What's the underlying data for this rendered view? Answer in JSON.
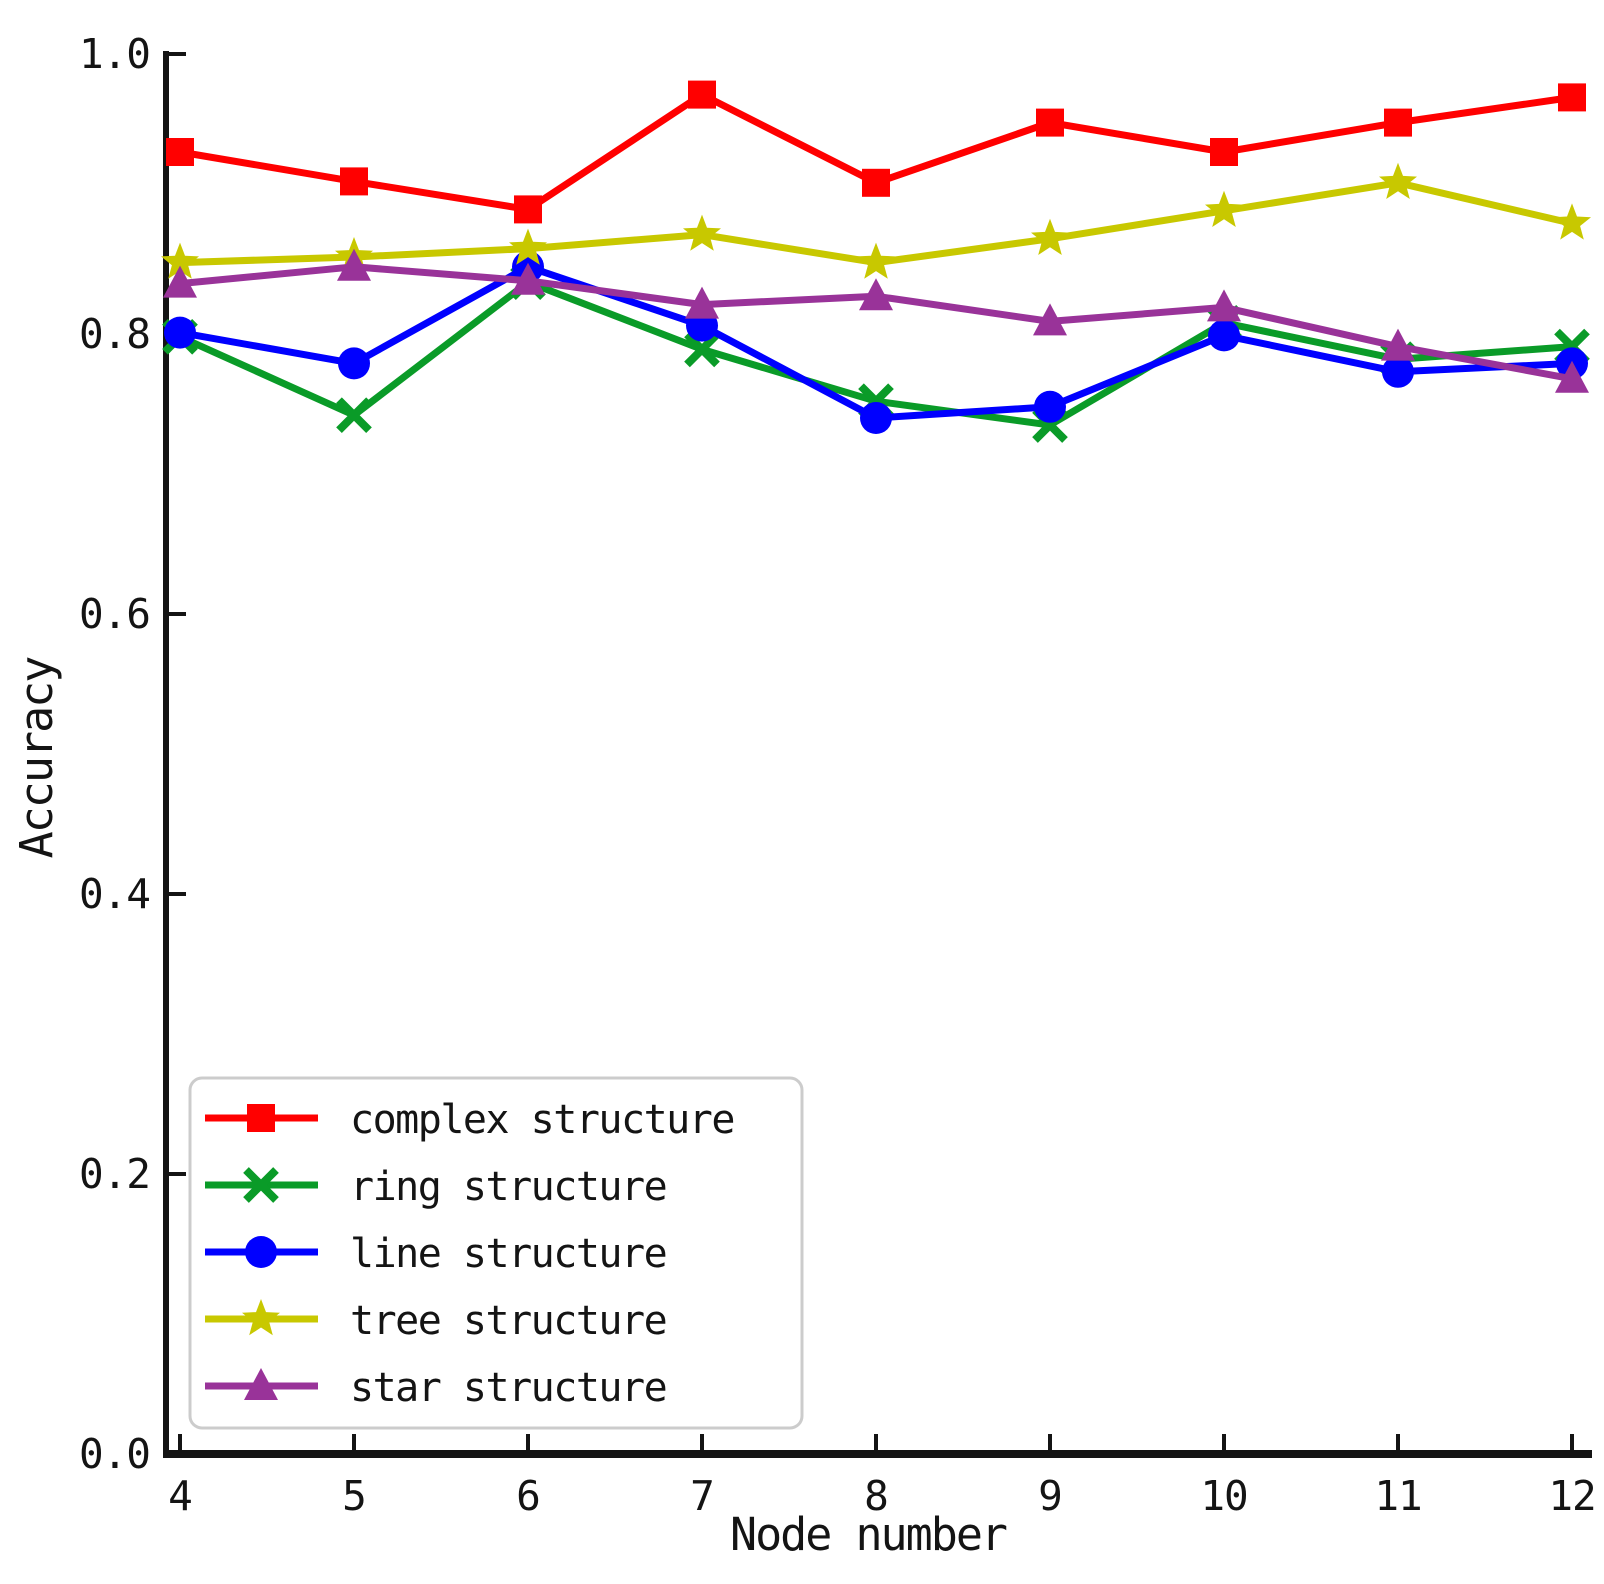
{
  "chart_data": {
    "type": "line",
    "title": "",
    "xlabel": "Node number",
    "ylabel": "Accuracy",
    "x": [
      4,
      5,
      6,
      7,
      8,
      9,
      10,
      11,
      12
    ],
    "xticks": [
      4,
      5,
      6,
      7,
      8,
      9,
      10,
      11,
      12
    ],
    "yticks": [
      0.0,
      0.2,
      0.4,
      0.6,
      0.8,
      1.0
    ],
    "xlim": [
      4,
      12
    ],
    "ylim": [
      0.0,
      1.0
    ],
    "grid": false,
    "legend_position": "lower-left",
    "series": [
      {
        "name": "complex structure",
        "color": "#ff0000",
        "marker": "square",
        "values": [
          0.93,
          0.909,
          0.889,
          0.971,
          0.908,
          0.951,
          0.93,
          0.951,
          0.969
        ]
      },
      {
        "name": "ring structure",
        "color": "#0a9b28",
        "marker": "x",
        "values": [
          0.798,
          0.742,
          0.837,
          0.789,
          0.752,
          0.735,
          0.808,
          0.782,
          0.791
        ]
      },
      {
        "name": "line structure",
        "color": "#0000ff",
        "marker": "circle",
        "values": [
          0.801,
          0.779,
          0.848,
          0.806,
          0.74,
          0.748,
          0.799,
          0.773,
          0.779
        ]
      },
      {
        "name": "tree structure",
        "color": "#c8c800",
        "marker": "star",
        "values": [
          0.851,
          0.855,
          0.861,
          0.871,
          0.851,
          0.868,
          0.888,
          0.908,
          0.879
        ]
      },
      {
        "name": "star structure",
        "color": "#993399",
        "marker": "triangle-up",
        "values": [
          0.836,
          0.848,
          0.838,
          0.821,
          0.827,
          0.809,
          0.819,
          0.791,
          0.768
        ]
      }
    ],
    "axis_color": "#141414",
    "legend_border_color": "#cccccc",
    "legend_background": "#ffffff",
    "background": "#ffffff"
  }
}
